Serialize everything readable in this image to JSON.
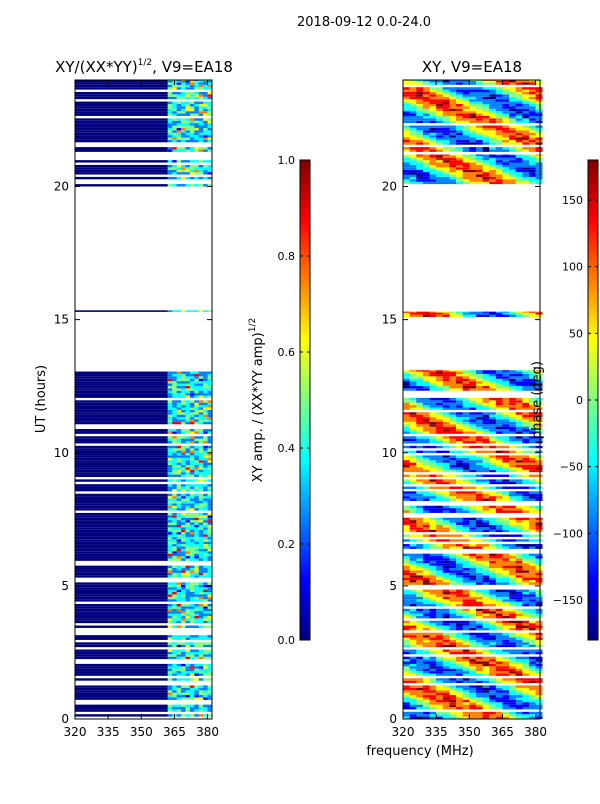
{
  "figure": {
    "suptitle": "2018-09-12 0.0-24.0",
    "shared_xlabel": "frequency (MHz)"
  },
  "colors": {
    "jet": [
      "#00007f",
      "#0000ff",
      "#007fff",
      "#00ffff",
      "#7fff7f",
      "#ffff00",
      "#ff7f00",
      "#ff0000",
      "#7f0000"
    ],
    "background": "#ffffff",
    "axis": "#000000"
  },
  "chart_data": [
    {
      "type": "heatmap",
      "title_main": "XY/(XX*YY)",
      "title_sup": "1/2",
      "title_tail": ", V9=EA18",
      "xlabel": "",
      "ylabel": "UT (hours)",
      "xlim": [
        320,
        382
      ],
      "ylim": [
        0,
        24
      ],
      "xticks": [
        320,
        335,
        350,
        365,
        380
      ],
      "yticks": [
        0,
        5,
        10,
        15,
        20
      ],
      "data_blocks_hours": [
        [
          0.0,
          13.1
        ],
        [
          15.2,
          15.35
        ],
        [
          20.0,
          21.0
        ],
        [
          21.3,
          24.0
        ]
      ],
      "colorbar": {
        "label_main": "XY amp. / (XX*YY amp)",
        "label_sup": "1/2",
        "min": 0.0,
        "max": 1.0,
        "ticks": [
          "0.0",
          "0.2",
          "0.4",
          "0.6",
          "0.8",
          "1.0"
        ],
        "tick_values": [
          0.0,
          0.2,
          0.4,
          0.6,
          0.8,
          1.0
        ]
      }
    },
    {
      "type": "heatmap",
      "title_main": "XY, V9=EA18",
      "xlabel": "",
      "ylabel": "",
      "xlim": [
        320,
        382
      ],
      "ylim": [
        0,
        24
      ],
      "xticks": [
        320,
        335,
        350,
        365,
        380
      ],
      "yticks": [
        0,
        5,
        10,
        15,
        20
      ],
      "data_blocks_hours": [
        [
          0.0,
          13.1
        ],
        [
          15.1,
          15.3
        ],
        [
          20.0,
          21.2
        ],
        [
          21.3,
          24.0
        ]
      ],
      "colorbar": {
        "label_main": "phase (deg)",
        "min": -180,
        "max": 180,
        "ticks": [
          "150",
          "100",
          "50",
          "0",
          "−50",
          "−100",
          "−150"
        ],
        "tick_values": [
          150,
          100,
          50,
          0,
          -50,
          -100,
          -150
        ]
      }
    }
  ]
}
